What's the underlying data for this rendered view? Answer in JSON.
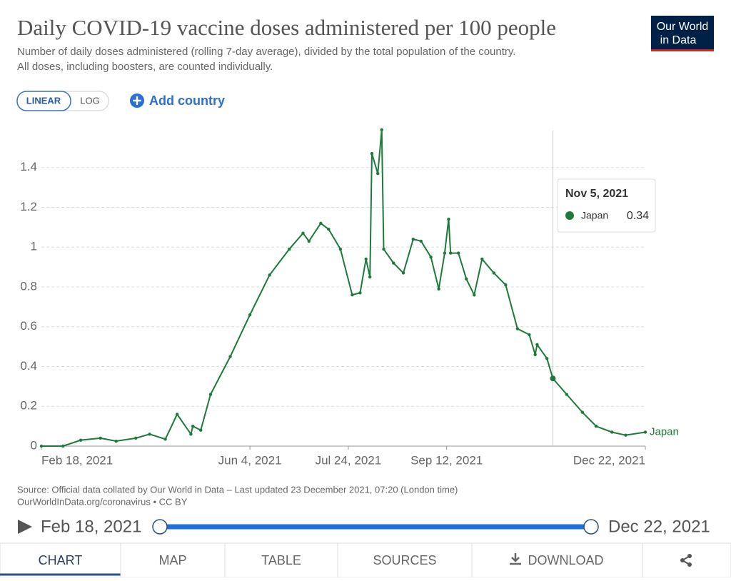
{
  "header": {
    "title": "Daily COVID-19 vaccine doses administered per 100 people",
    "subtitle_lines": [
      "Number of daily doses administered (rolling 7-day average), divided by the total population of the country.",
      "All doses, including boosters, are counted individually."
    ],
    "logo_lines": [
      "Our World",
      "in Data"
    ]
  },
  "controls": {
    "scale_buttons": [
      "LINEAR",
      "LOG"
    ],
    "add_country": "Add country"
  },
  "chart_data": {
    "type": "line",
    "log_scale": false,
    "grid": true,
    "x": [
      "2021-02-18",
      "2021-03-01",
      "2021-03-10",
      "2021-03-20",
      "2021-03-28",
      "2021-04-07",
      "2021-04-14",
      "2021-04-22",
      "2021-04-28",
      "2021-05-05",
      "2021-05-06",
      "2021-05-10",
      "2021-05-15",
      "2021-05-25",
      "2021-06-04",
      "2021-06-14",
      "2021-06-24",
      "2021-07-01",
      "2021-07-04",
      "2021-07-10",
      "2021-07-14",
      "2021-07-20",
      "2021-07-26",
      "2021-07-30",
      "2021-08-02",
      "2021-08-04",
      "2021-08-05",
      "2021-08-08",
      "2021-08-10",
      "2021-08-11",
      "2021-08-16",
      "2021-08-21",
      "2021-08-26",
      "2021-08-30",
      "2021-09-04",
      "2021-09-08",
      "2021-09-11",
      "2021-09-13",
      "2021-09-14",
      "2021-09-18",
      "2021-09-22",
      "2021-09-26",
      "2021-09-30",
      "2021-10-06",
      "2021-10-12",
      "2021-10-18",
      "2021-10-24",
      "2021-10-27",
      "2021-10-28",
      "2021-11-02",
      "2021-11-05",
      "2021-11-12",
      "2021-11-20",
      "2021-11-27",
      "2021-12-05",
      "2021-12-12",
      "2021-12-22"
    ],
    "series": [
      {
        "name": "Japan",
        "color": "#1d7a3b",
        "values": [
          0.0,
          0.0,
          0.03,
          0.04,
          0.025,
          0.04,
          0.06,
          0.035,
          0.16,
          0.06,
          0.1,
          0.08,
          0.26,
          0.45,
          0.66,
          0.86,
          0.99,
          1.07,
          1.03,
          1.12,
          1.09,
          0.99,
          0.76,
          0.77,
          0.94,
          0.85,
          1.47,
          1.37,
          1.59,
          0.99,
          0.92,
          0.87,
          1.04,
          1.03,
          0.95,
          0.79,
          0.97,
          1.14,
          0.97,
          0.97,
          0.84,
          0.76,
          0.94,
          0.87,
          0.81,
          0.59,
          0.56,
          0.46,
          0.51,
          0.44,
          0.34,
          0.26,
          0.17,
          0.1,
          0.07,
          0.055,
          0.07
        ]
      }
    ],
    "xlim": [
      "2021-02-18",
      "2021-12-22"
    ],
    "xticks": [
      {
        "value": "2021-02-18",
        "label": "Feb 18, 2021"
      },
      {
        "value": "2021-06-04",
        "label": "Jun 4, 2021"
      },
      {
        "value": "2021-07-24",
        "label": "Jul 24, 2021"
      },
      {
        "value": "2021-09-12",
        "label": "Sep 12, 2021"
      },
      {
        "value": "2021-12-22",
        "label": "Dec 22, 2021"
      }
    ],
    "ylim": [
      0,
      1.6
    ],
    "yticks": [
      0,
      0.2,
      0.4,
      0.6,
      0.8,
      1,
      1.2,
      1.4
    ],
    "tooltip": {
      "x": "2021-11-05",
      "date": "Nov 5, 2021",
      "value": 0.34
    }
  },
  "footer": {
    "source_lines": [
      "Source: Official data collated by Our World in Data – Last updated 23 December 2021, 07:20 (London time)",
      "OurWorldInData.org/coronavirus • CC BY"
    ],
    "timeline_start": "Feb 18, 2021",
    "timeline_end": "Dec 22, 2021",
    "tabs": [
      "CHART",
      "MAP",
      "TABLE",
      "SOURCES",
      "DOWNLOAD"
    ]
  }
}
